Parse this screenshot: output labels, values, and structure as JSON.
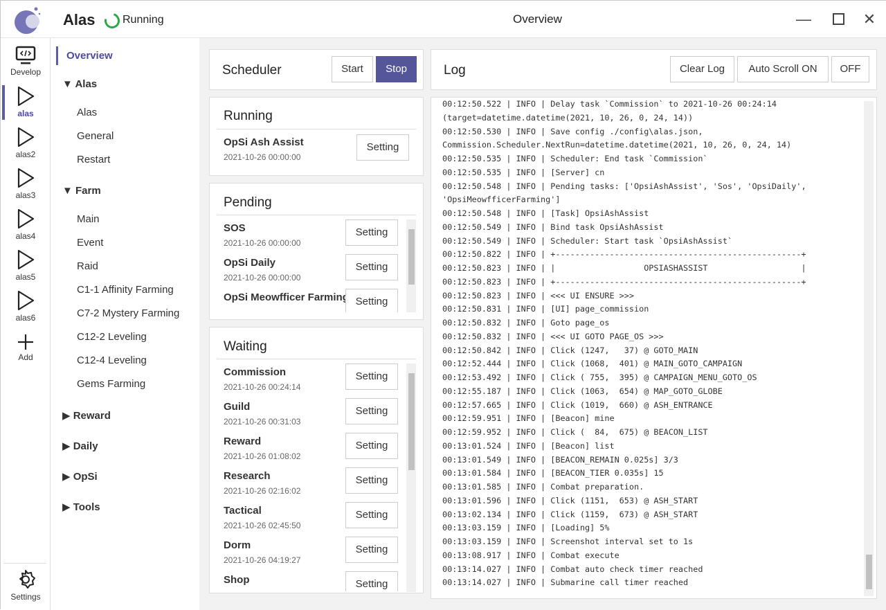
{
  "app": {
    "name": "Alas",
    "status": "Running",
    "window_title": "Overview",
    "status_color": "#2aa847",
    "accent": "#55559a"
  },
  "iconbar": [
    {
      "label": "Develop",
      "icon": "code-monitor-icon"
    },
    {
      "label": "alas",
      "icon": "play-icon",
      "active": true
    },
    {
      "label": "alas2",
      "icon": "play-icon"
    },
    {
      "label": "alas3",
      "icon": "play-icon"
    },
    {
      "label": "alas4",
      "icon": "play-icon"
    },
    {
      "label": "alas5",
      "icon": "play-icon"
    },
    {
      "label": "alas6",
      "icon": "play-icon"
    },
    {
      "label": "Add",
      "icon": "plus-icon"
    },
    {
      "label": "Settings",
      "icon": "gear-icon"
    }
  ],
  "nav": {
    "overview": "Overview",
    "alas": {
      "label": "Alas",
      "items": [
        "Alas",
        "General",
        "Restart"
      ]
    },
    "farm": {
      "label": "Farm",
      "items": [
        "Main",
        "Event",
        "Raid",
        "C1-1 Affinity Farming",
        "C7-2 Mystery Farming",
        "C12-2 Leveling",
        "C12-4 Leveling",
        "Gems Farming"
      ]
    },
    "collapsed": [
      "Reward",
      "Daily",
      "OpSi",
      "Tools"
    ]
  },
  "scheduler": {
    "title": "Scheduler",
    "start": "Start",
    "stop": "Stop"
  },
  "setting_label": "Setting",
  "running": {
    "title": "Running",
    "tasks": [
      {
        "name": "OpSi Ash Assist",
        "time": "2021-10-26 00:00:00"
      }
    ]
  },
  "pending": {
    "title": "Pending",
    "tasks": [
      {
        "name": "SOS",
        "time": "2021-10-26 00:00:00"
      },
      {
        "name": "OpSi Daily",
        "time": "2021-10-26 00:00:00"
      },
      {
        "name": "OpSi Meowfficer Farming",
        "time": ""
      }
    ]
  },
  "waiting": {
    "title": "Waiting",
    "tasks": [
      {
        "name": "Commission",
        "time": "2021-10-26 00:24:14"
      },
      {
        "name": "Guild",
        "time": "2021-10-26 00:31:03"
      },
      {
        "name": "Reward",
        "time": "2021-10-26 01:08:02"
      },
      {
        "name": "Research",
        "time": "2021-10-26 02:16:02"
      },
      {
        "name": "Tactical",
        "time": "2021-10-26 02:45:50"
      },
      {
        "name": "Dorm",
        "time": "2021-10-26 04:19:27"
      },
      {
        "name": "Shop",
        "time": ""
      }
    ]
  },
  "log": {
    "title": "Log",
    "clear": "Clear Log",
    "autoscroll_on": "Auto Scroll ON",
    "autoscroll_off": "OFF",
    "lines": [
      "00:12:50.522 | INFO | Delay task `Commission` to 2021-10-26 00:24:14",
      "(target=datetime.datetime(2021, 10, 26, 0, 24, 14))",
      "00:12:50.530 | INFO | Save config ./config\\alas.json,",
      "Commission.Scheduler.NextRun=datetime.datetime(2021, 10, 26, 0, 24, 14)",
      "00:12:50.535 | INFO | Scheduler: End task `Commission`",
      "00:12:50.535 | INFO | [Server] cn",
      "00:12:50.548 | INFO | Pending tasks: ['OpsiAshAssist', 'Sos', 'OpsiDaily',",
      "'OpsiMeowfficerFarming']",
      "00:12:50.548 | INFO | [Task] OpsiAshAssist",
      "00:12:50.549 | INFO | Bind task OpsiAshAssist",
      "00:12:50.549 | INFO | Scheduler: Start task `OpsiAshAssist`",
      "00:12:50.822 | INFO | +--------------------------------------------------+",
      "00:12:50.823 | INFO | |                  OPSIASHASSIST                   |",
      "00:12:50.823 | INFO | +--------------------------------------------------+",
      "00:12:50.823 | INFO | <<< UI ENSURE >>>",
      "00:12:50.831 | INFO | [UI] page_commission",
      "00:12:50.832 | INFO | Goto page_os",
      "00:12:50.832 | INFO | <<< UI GOTO PAGE_OS >>>",
      "00:12:50.842 | INFO | Click (1247,   37) @ GOTO_MAIN",
      "00:12:52.444 | INFO | Click (1068,  401) @ MAIN_GOTO_CAMPAIGN",
      "00:12:53.492 | INFO | Click ( 755,  395) @ CAMPAIGN_MENU_GOTO_OS",
      "00:12:55.187 | INFO | Click (1063,  654) @ MAP_GOTO_GLOBE",
      "00:12:57.665 | INFO | Click (1019,  660) @ ASH_ENTRANCE",
      "00:12:59.951 | INFO | [Beacon] mine",
      "00:12:59.952 | INFO | Click (  84,  675) @ BEACON_LIST",
      "00:13:01.524 | INFO | [Beacon] list",
      "00:13:01.549 | INFO | [BEACON_REMAIN 0.025s] 3/3",
      "00:13:01.584 | INFO | [BEACON_TIER 0.035s] 15",
      "00:13:01.585 | INFO | Combat preparation.",
      "00:13:01.596 | INFO | Click (1151,  653) @ ASH_START",
      "00:13:02.134 | INFO | Click (1159,  673) @ ASH_START",
      "00:13:03.159 | INFO | [Loading] 5%",
      "00:13:03.159 | INFO | Screenshot interval set to 1s",
      "00:13:08.917 | INFO | Combat execute",
      "00:13:14.027 | INFO | Combat auto check timer reached",
      "00:13:14.027 | INFO | Submarine call timer reached"
    ]
  }
}
